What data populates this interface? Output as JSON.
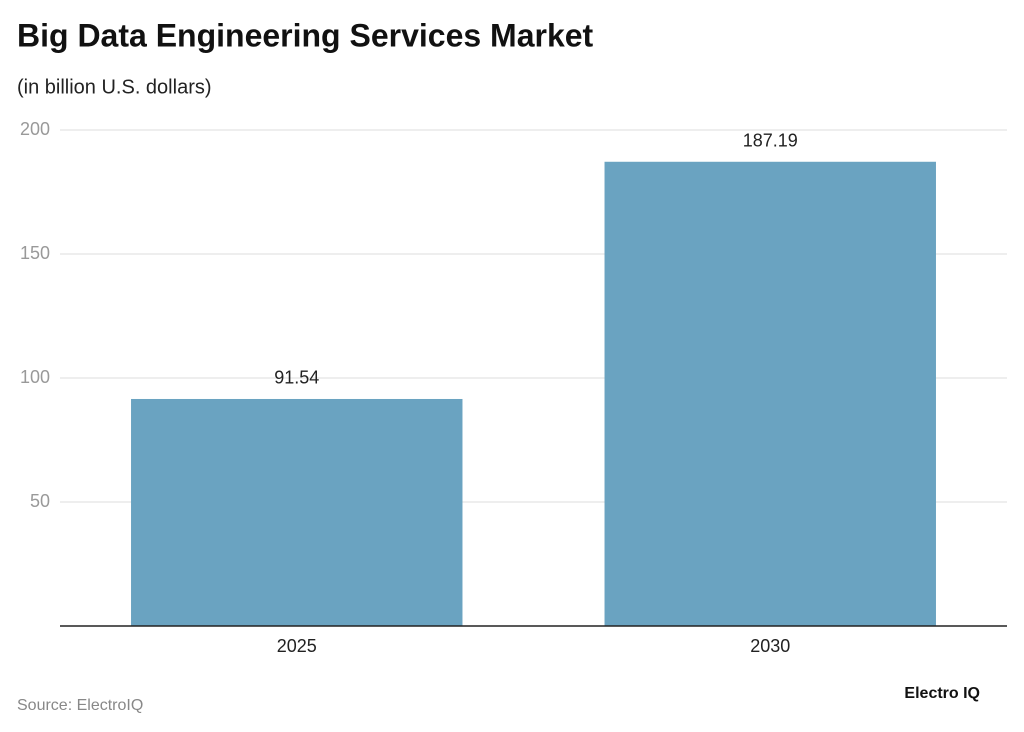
{
  "chart_data": {
    "type": "bar",
    "title": "Big Data Engineering Services Market",
    "subtitle": "(in billion U.S. dollars)",
    "categories": [
      "2025",
      "2030"
    ],
    "values": [
      91.54,
      187.19
    ],
    "color": "#6aa3c1",
    "ylim": [
      0,
      200
    ],
    "yticks": [
      50,
      100,
      150,
      200
    ],
    "grid": true,
    "source": "Source: ElectroIQ",
    "brand": "Electro IQ"
  }
}
